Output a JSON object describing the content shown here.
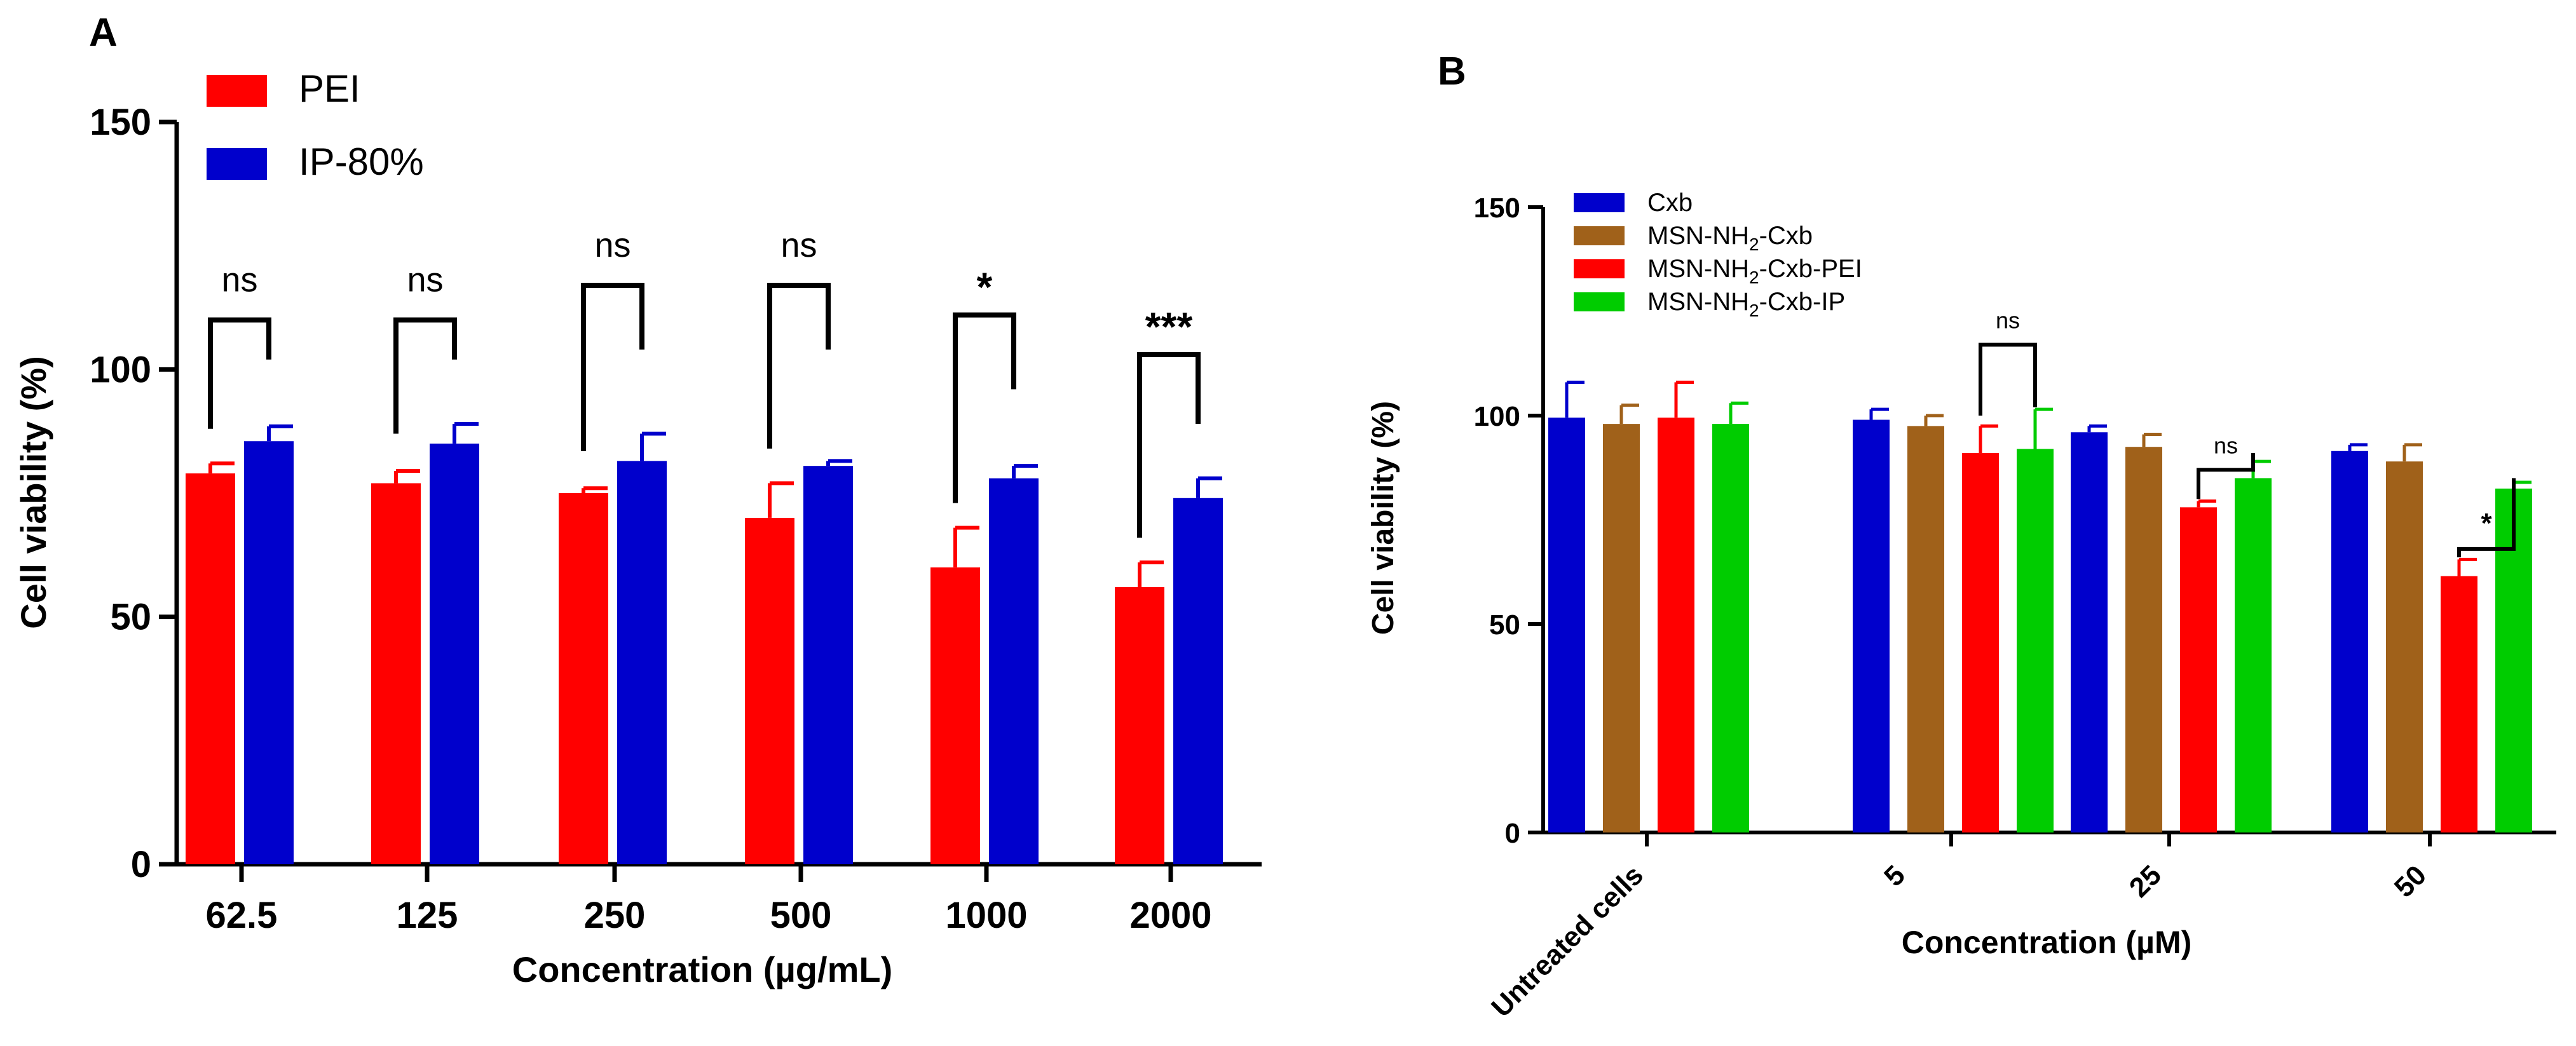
{
  "chart_data": [
    {
      "panel": "A",
      "type": "bar",
      "xlabel": "Concentration (µg/mL)",
      "ylabel": "Cell viability (%)",
      "ylim": [
        0,
        150
      ],
      "yticks": [
        0,
        50,
        100,
        150
      ],
      "categories": [
        "62.5",
        "125",
        "250",
        "500",
        "1000",
        "2000"
      ],
      "series": [
        {
          "name": "PEI",
          "color": "#ff0000",
          "values": [
            79,
            77,
            75,
            70,
            60,
            56
          ],
          "errors": [
            2,
            2.5,
            1,
            7,
            8,
            5
          ]
        },
        {
          "name": "IP-80%",
          "color": "#0000cc",
          "values": [
            85.5,
            85,
            81.5,
            80.5,
            78,
            74
          ],
          "errors": [
            3,
            4,
            5.5,
            1,
            2.5,
            4
          ]
        }
      ],
      "significance": [
        {
          "category": 0,
          "label": "ns"
        },
        {
          "category": 1,
          "label": "ns"
        },
        {
          "category": 2,
          "label": "ns"
        },
        {
          "category": 3,
          "label": "ns"
        },
        {
          "category": 4,
          "label": "*"
        },
        {
          "category": 5,
          "label": "***"
        }
      ],
      "legend_position": "top-left"
    },
    {
      "panel": "B",
      "type": "bar",
      "xlabel": "Concentration (µM)",
      "ylabel": "Cell viability (%)",
      "ylim": [
        0,
        150
      ],
      "yticks": [
        0,
        50,
        100,
        150
      ],
      "categories": [
        "Untreated cells",
        "5",
        "25",
        "50"
      ],
      "series": [
        {
          "name": "Cxb",
          "color": "#0000cc",
          "label_color": "#0000cc",
          "values": [
            99.5,
            99,
            96,
            91.5
          ],
          "errors": [
            8.5,
            2.5,
            1.5,
            1.5
          ]
        },
        {
          "name": "MSN-NH2-Cxb",
          "color": "#a0611a",
          "label_color": "#8b6914",
          "values": [
            98,
            97.5,
            92.5,
            89
          ],
          "errors": [
            4.5,
            2.5,
            3,
            4
          ]
        },
        {
          "name": "MSN-NH2-Cxb-PEI",
          "color": "#ff0000",
          "label_color": "#ff0000",
          "values": [
            99.5,
            91,
            78,
            61.5
          ],
          "errors": [
            8.5,
            6.5,
            1.5,
            4
          ]
        },
        {
          "name": "MSN-NH2-Cxb-IP",
          "color": "#00cc00",
          "label_color": "#00bb00",
          "values": [
            98,
            92,
            85,
            82.5
          ],
          "errors": [
            5,
            9.5,
            4,
            1.5
          ]
        }
      ],
      "significance": [
        {
          "category": 1,
          "label": "ns"
        },
        {
          "category": 2,
          "label": "ns"
        },
        {
          "category": 3,
          "label": "*"
        }
      ],
      "legend_position": "top-left"
    }
  ],
  "panel_labels": [
    "A",
    "B"
  ],
  "legend_b": [
    {
      "prefix": "Cxb",
      "sub": "",
      "suffix": ""
    },
    {
      "prefix": "MSN-NH",
      "sub": "2",
      "suffix": "-Cxb"
    },
    {
      "prefix": "MSN-NH",
      "sub": "2",
      "suffix": "-Cxb-PEI"
    },
    {
      "prefix": "MSN-NH",
      "sub": "2",
      "suffix": "-Cxb-IP"
    }
  ]
}
